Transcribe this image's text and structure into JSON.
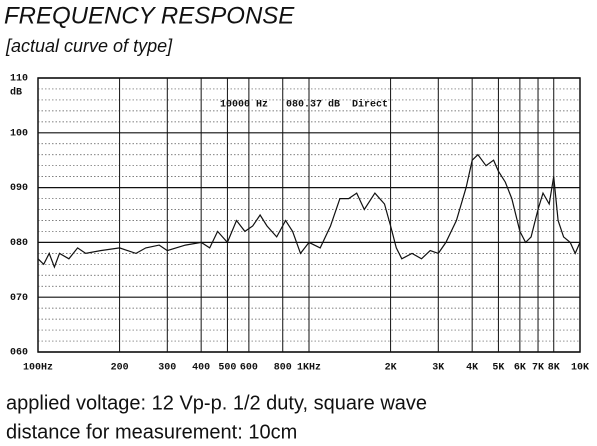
{
  "chart_data": {
    "type": "line",
    "title": "FREQUENCY RESPONSE",
    "subtitle": "[actual curve of type]",
    "y_label": "dB",
    "annotation": "10000 Hz   080.37 dB  Direct",
    "notes": [
      "applied voltage: 12 Vp-p. 1/2 duty, square wave",
      "distance for measurement: 10cm"
    ],
    "xscale": "log",
    "grid": true,
    "color": "#111111",
    "x": [
      100,
      105,
      110,
      115,
      120,
      130,
      140,
      150,
      170,
      200,
      230,
      250,
      280,
      300,
      350,
      400,
      430,
      460,
      500,
      540,
      580,
      620,
      660,
      700,
      760,
      820,
      870,
      930,
      1000,
      1100,
      1200,
      1300,
      1400,
      1500,
      1600,
      1750,
      1900,
      2000,
      2100,
      2200,
      2400,
      2600,
      2800,
      3000,
      3200,
      3500,
      3800,
      4000,
      4200,
      4500,
      4800,
      5000,
      5300,
      5600,
      6000,
      6300,
      6600,
      7000,
      7300,
      7700,
      8000,
      8300,
      8700,
      9200,
      9600,
      10000
    ],
    "values": [
      77,
      76,
      78,
      75.5,
      78,
      77,
      79,
      78,
      78.5,
      79,
      78,
      79,
      79.5,
      78.5,
      79.5,
      80,
      79,
      82,
      80,
      84,
      82,
      83,
      85,
      83,
      81,
      84,
      82,
      78,
      80,
      79,
      83,
      88,
      88,
      89,
      86,
      89,
      87,
      83,
      79,
      77,
      78,
      77,
      78.5,
      78,
      80,
      84,
      90,
      95,
      96,
      94,
      95,
      93,
      91,
      88,
      82,
      80,
      81,
      86,
      89,
      87,
      92,
      84,
      81,
      80,
      78,
      80
    ],
    "xlim": [
      100,
      10000
    ],
    "xticks": [
      {
        "value": 100,
        "label": "100Hz"
      },
      200,
      300,
      400,
      500,
      600,
      800,
      {
        "value": 1000,
        "label": "1KHz"
      },
      {
        "value": 2000,
        "label": "2K"
      },
      {
        "value": 3000,
        "label": "3K"
      },
      {
        "value": 4000,
        "label": "4K"
      },
      {
        "value": 5000,
        "label": "5K"
      },
      {
        "value": 6000,
        "label": "6K"
      },
      {
        "value": 7000,
        "label": "7K"
      },
      {
        "value": 8000,
        "label": "8K"
      },
      {
        "value": 10000,
        "label": "10K"
      }
    ],
    "ylim": [
      60,
      110
    ],
    "yticks": [
      {
        "value": 60,
        "label": "060"
      },
      {
        "value": 70,
        "label": "070"
      },
      {
        "value": 80,
        "label": "080"
      },
      {
        "value": 90,
        "label": "090"
      },
      100,
      110
    ],
    "minor_yticks": [
      62,
      64,
      66,
      68,
      72,
      74,
      76,
      78,
      82,
      84,
      86,
      88,
      92,
      94,
      96,
      98,
      102,
      104,
      106,
      108
    ]
  }
}
